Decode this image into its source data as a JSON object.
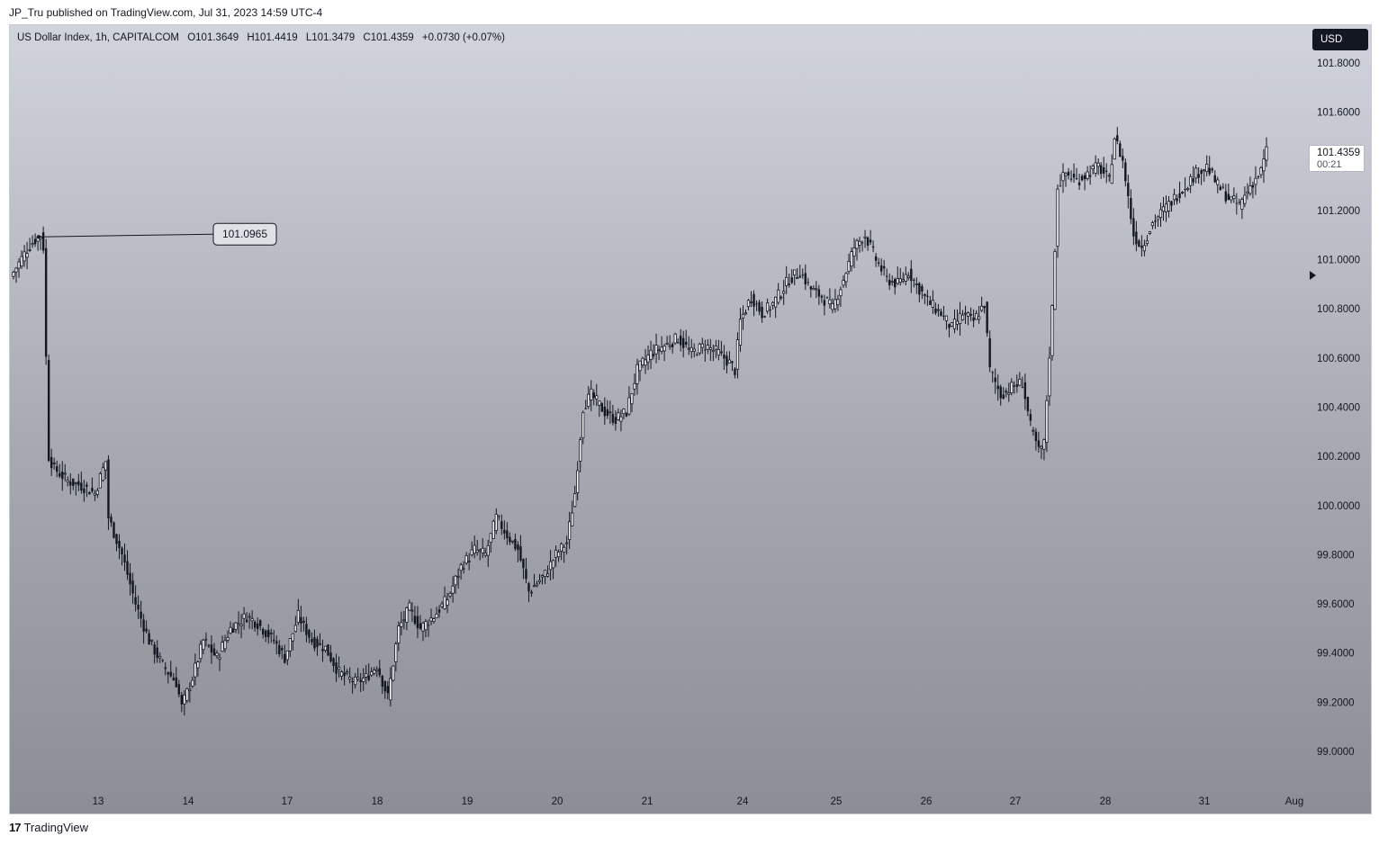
{
  "header": {
    "published_text": "JP_Tru published on TradingView.com, Jul 31, 2023 14:59 UTC-4"
  },
  "legend": {
    "symbol": "US Dollar Index, 1h, CAPITALCOM",
    "open": "O101.3649",
    "high": "H101.4419",
    "low": "L101.3479",
    "close": "C101.4359",
    "change": "+0.0730 (+0.07%)"
  },
  "currency_button": {
    "label": "USD"
  },
  "last_price": {
    "value": "101.4359",
    "countdown": "00:21"
  },
  "annotation": {
    "label": "101.0965"
  },
  "footer": {
    "brand": "TradingView",
    "logo_glyph": "17"
  },
  "colors": {
    "candle": "#131722",
    "bg_top": "#d1d4dc",
    "bg_bottom": "#8c8e96"
  },
  "chart_data": {
    "type": "candlestick",
    "symbol": "US Dollar Index",
    "interval": "1h",
    "y_ticks": [
      "101.8000",
      "101.6000",
      "101.4000",
      "101.2000",
      "101.0000",
      "100.8000",
      "100.6000",
      "100.4000",
      "100.2000",
      "100.0000",
      "99.8000",
      "99.6000",
      "99.4000",
      "99.2000",
      "99.0000"
    ],
    "x_ticks": [
      "13",
      "14",
      "17",
      "18",
      "19",
      "20",
      "21",
      "24",
      "25",
      "26",
      "27",
      "28",
      "31",
      "Aug"
    ],
    "ylim": [
      98.85,
      101.9
    ],
    "price_path": [
      [
        0,
        100.95
      ],
      [
        6,
        101.06
      ],
      [
        8,
        101.08
      ],
      [
        10,
        101.1
      ],
      [
        11,
        101.05
      ],
      [
        12,
        100.6
      ],
      [
        13,
        100.2
      ],
      [
        15,
        100.15
      ],
      [
        20,
        100.1
      ],
      [
        25,
        100.08
      ],
      [
        30,
        100.05
      ],
      [
        34,
        100.18
      ],
      [
        35,
        99.95
      ],
      [
        40,
        99.8
      ],
      [
        45,
        99.6
      ],
      [
        50,
        99.45
      ],
      [
        55,
        99.35
      ],
      [
        60,
        99.28
      ],
      [
        62,
        99.18
      ],
      [
        66,
        99.3
      ],
      [
        70,
        99.45
      ],
      [
        75,
        99.38
      ],
      [
        80,
        99.5
      ],
      [
        86,
        99.55
      ],
      [
        90,
        99.52
      ],
      [
        96,
        99.45
      ],
      [
        100,
        99.38
      ],
      [
        105,
        99.55
      ],
      [
        110,
        99.45
      ],
      [
        115,
        99.42
      ],
      [
        120,
        99.32
      ],
      [
        126,
        99.28
      ],
      [
        130,
        99.3
      ],
      [
        134,
        99.35
      ],
      [
        138,
        99.22
      ],
      [
        142,
        99.5
      ],
      [
        146,
        99.58
      ],
      [
        150,
        99.5
      ],
      [
        155,
        99.55
      ],
      [
        160,
        99.62
      ],
      [
        165,
        99.75
      ],
      [
        170,
        99.82
      ],
      [
        174,
        99.8
      ],
      [
        178,
        99.95
      ],
      [
        182,
        99.88
      ],
      [
        186,
        99.82
      ],
      [
        190,
        99.65
      ],
      [
        196,
        99.72
      ],
      [
        200,
        99.8
      ],
      [
        204,
        99.85
      ],
      [
        207,
        100.05
      ],
      [
        210,
        100.4
      ],
      [
        213,
        100.45
      ],
      [
        218,
        100.38
      ],
      [
        222,
        100.35
      ],
      [
        226,
        100.38
      ],
      [
        230,
        100.55
      ],
      [
        235,
        100.62
      ],
      [
        240,
        100.65
      ],
      [
        245,
        100.68
      ],
      [
        250,
        100.62
      ],
      [
        255,
        100.65
      ],
      [
        260,
        100.62
      ],
      [
        264,
        100.58
      ],
      [
        266,
        100.55
      ],
      [
        268,
        100.75
      ],
      [
        272,
        100.85
      ],
      [
        276,
        100.78
      ],
      [
        280,
        100.82
      ],
      [
        286,
        100.92
      ],
      [
        290,
        100.95
      ],
      [
        294,
        100.88
      ],
      [
        298,
        100.85
      ],
      [
        302,
        100.8
      ],
      [
        306,
        100.92
      ],
      [
        310,
        101.05
      ],
      [
        314,
        101.1
      ],
      [
        318,
        101.0
      ],
      [
        322,
        100.92
      ],
      [
        326,
        100.9
      ],
      [
        330,
        100.95
      ],
      [
        334,
        100.88
      ],
      [
        338,
        100.82
      ],
      [
        342,
        100.78
      ],
      [
        346,
        100.72
      ],
      [
        350,
        100.78
      ],
      [
        354,
        100.75
      ],
      [
        358,
        100.82
      ],
      [
        360,
        100.55
      ],
      [
        364,
        100.45
      ],
      [
        368,
        100.48
      ],
      [
        372,
        100.5
      ],
      [
        375,
        100.32
      ],
      [
        378,
        100.22
      ],
      [
        380,
        100.25
      ],
      [
        383,
        100.8
      ],
      [
        385,
        101.3
      ],
      [
        388,
        101.35
      ],
      [
        392,
        101.32
      ],
      [
        396,
        101.35
      ],
      [
        400,
        101.38
      ],
      [
        404,
        101.32
      ],
      [
        406,
        101.5
      ],
      [
        409,
        101.4
      ],
      [
        411,
        101.25
      ],
      [
        413,
        101.1
      ],
      [
        416,
        101.05
      ],
      [
        420,
        101.15
      ],
      [
        424,
        101.2
      ],
      [
        428,
        101.25
      ],
      [
        432,
        101.3
      ],
      [
        436,
        101.35
      ],
      [
        440,
        101.38
      ],
      [
        444,
        101.3
      ],
      [
        448,
        101.25
      ],
      [
        452,
        101.22
      ],
      [
        456,
        101.3
      ],
      [
        460,
        101.36
      ],
      [
        462,
        101.44
      ]
    ]
  }
}
